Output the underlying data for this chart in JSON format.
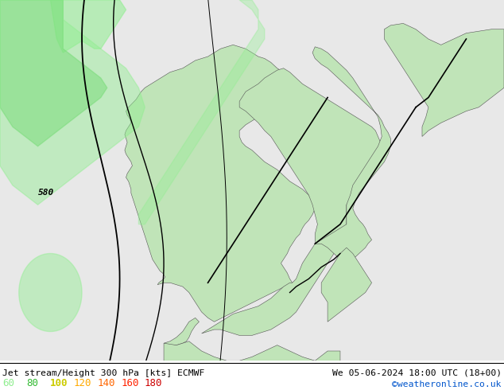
{
  "title_left": "Jet stream/Height 300 hPa [kts] ECMWF",
  "title_right": "We 05-06-2024 18:00 UTC (18+00)",
  "credit": "©weatheronline.co.uk",
  "legend_values": [
    "60",
    "80",
    "100",
    "120",
    "140",
    "160",
    "180"
  ],
  "legend_colors": [
    "#90ee90",
    "#33bb33",
    "#cccc00",
    "#ffaa00",
    "#ff6600",
    "#ff2200",
    "#cc0000"
  ],
  "bg_color": "#ebebeb",
  "sea_color": "#e8e8e8",
  "land_color": "#c8e8c0",
  "border_color": "#222222",
  "coast_color": "#444444",
  "fig_width": 6.34,
  "fig_height": 4.9,
  "dpi": 100,
  "lon_min": 0.0,
  "lon_max": 35.0,
  "lat_min": 54.0,
  "lat_max": 72.0
}
